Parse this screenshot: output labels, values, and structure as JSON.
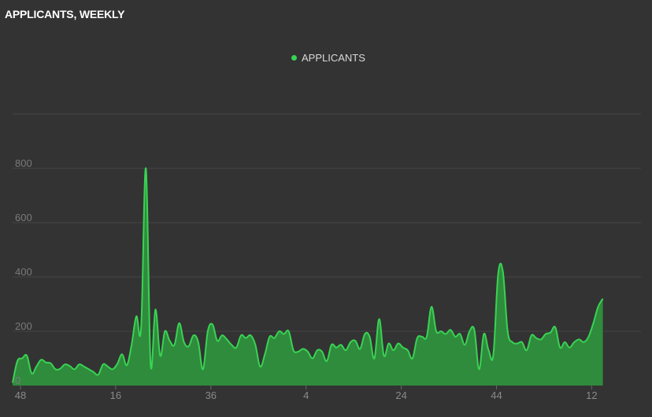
{
  "header": {
    "title": "APPLICANTS, WEEKLY"
  },
  "legend": {
    "label": "APPLICANTS"
  },
  "colors": {
    "line": "#39d353",
    "fill": "#2f8c3c",
    "grid": "#454545",
    "background": "#333333"
  },
  "chart_data": {
    "type": "area",
    "title": "APPLICANTS, WEEKLY",
    "xlabel": "",
    "ylabel": "",
    "ylim": [
      0,
      1000
    ],
    "yticks": [
      0,
      200,
      400,
      600,
      800
    ],
    "grid": true,
    "legend_position": "top-center",
    "x_tick_labels": [
      "48",
      "16",
      "36",
      "4",
      "24",
      "44",
      "12"
    ],
    "x_tick_indices": [
      0,
      20,
      40,
      60,
      80,
      100,
      120
    ],
    "series": [
      {
        "name": "APPLICANTS",
        "values": [
          10,
          90,
          100,
          110,
          45,
          70,
          95,
          85,
          82,
          60,
          62,
          78,
          72,
          60,
          78,
          70,
          60,
          50,
          40,
          78,
          70,
          60,
          80,
          115,
          75,
          150,
          255,
          215,
          800,
          75,
          280,
          110,
          200,
          165,
          150,
          230,
          160,
          145,
          185,
          160,
          60,
          200,
          225,
          165,
          185,
          170,
          150,
          140,
          185,
          175,
          185,
          150,
          70,
          115,
          180,
          175,
          200,
          190,
          200,
          130,
          125,
          135,
          125,
          100,
          130,
          125,
          90,
          150,
          140,
          150,
          130,
          160,
          165,
          135,
          190,
          180,
          100,
          245,
          110,
          155,
          130,
          155,
          140,
          130,
          100,
          175,
          180,
          180,
          290,
          200,
          200,
          190,
          205,
          180,
          190,
          150,
          200,
          205,
          60,
          190,
          130,
          115,
          410,
          420,
          200,
          160,
          155,
          160,
          130,
          185,
          175,
          170,
          190,
          195,
          215,
          140,
          160,
          140,
          160,
          170,
          160,
          180,
          230,
          290,
          320
        ]
      }
    ]
  }
}
